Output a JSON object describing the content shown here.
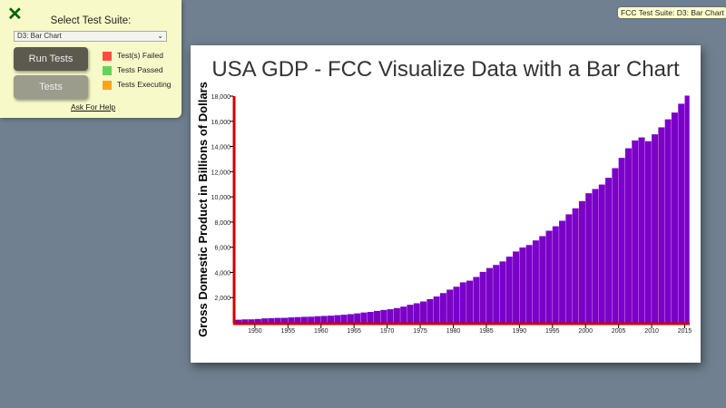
{
  "badge": "FCC Test Suite: D3: Bar Chart",
  "panel": {
    "close_icon": "x-icon",
    "select_label": "Select Test Suite:",
    "selected_suite": "D3: Bar Chart",
    "run_button": "Run Tests",
    "tests_button": "Tests",
    "legend": [
      {
        "label": "Test(s) Failed",
        "color": "#ff4d3d"
      },
      {
        "label": "Tests Passed",
        "color": "#5fd65a"
      },
      {
        "label": "Tests Executing",
        "color": "#ffa41a"
      }
    ],
    "help_link": "Ask For Help"
  },
  "chart_data": {
    "type": "bar",
    "title": "USA GDP - FCC Visualize Data with a Bar Chart",
    "ylabel": "Gross Domestic Product in Billions of Dollars",
    "xlabel": "",
    "bar_color": "#7b00c8",
    "axis_color": "#cc0000",
    "ylim": [
      0,
      18000
    ],
    "xlim": [
      1947,
      2015.75
    ],
    "y_ticks": [
      "2,000",
      "4,000",
      "6,000",
      "8,000",
      "10,000",
      "12,000",
      "14,000",
      "16,000",
      "18,000"
    ],
    "x_ticks": [
      "1950",
      "1955",
      "1960",
      "1965",
      "1970",
      "1975",
      "1980",
      "1985",
      "1990",
      "1995",
      "2000",
      "2005",
      "2010",
      "2015"
    ],
    "x": [
      1947,
      1948,
      1949,
      1950,
      1951,
      1952,
      1953,
      1954,
      1955,
      1956,
      1957,
      1958,
      1959,
      1960,
      1961,
      1962,
      1963,
      1964,
      1965,
      1966,
      1967,
      1968,
      1969,
      1970,
      1971,
      1972,
      1973,
      1974,
      1975,
      1976,
      1977,
      1978,
      1979,
      1980,
      1981,
      1982,
      1983,
      1984,
      1985,
      1986,
      1987,
      1988,
      1989,
      1990,
      1991,
      1992,
      1993,
      1994,
      1995,
      1996,
      1997,
      1998,
      1999,
      2000,
      2001,
      2002,
      2003,
      2004,
      2005,
      2006,
      2007,
      2008,
      2009,
      2010,
      2011,
      2012,
      2013,
      2014,
      2015
    ],
    "values": [
      243,
      269,
      272,
      300,
      347,
      367,
      389,
      391,
      426,
      449,
      474,
      482,
      522,
      543,
      563,
      605,
      638,
      686,
      744,
      815,
      862,
      943,
      1019,
      1075,
      1168,
      1282,
      1429,
      1549,
      1689,
      1878,
      2086,
      2357,
      2632,
      2863,
      3211,
      3345,
      3638,
      4041,
      4347,
      4590,
      4870,
      5253,
      5658,
      5980,
      6174,
      6539,
      6879,
      7309,
      7664,
      8100,
      8609,
      9089,
      9661,
      10285,
      10622,
      10978,
      11511,
      12275,
      13094,
      13856,
      14478,
      14719,
      14419,
      14964,
      15518,
      16155,
      16692,
      17393,
      18037
    ]
  }
}
